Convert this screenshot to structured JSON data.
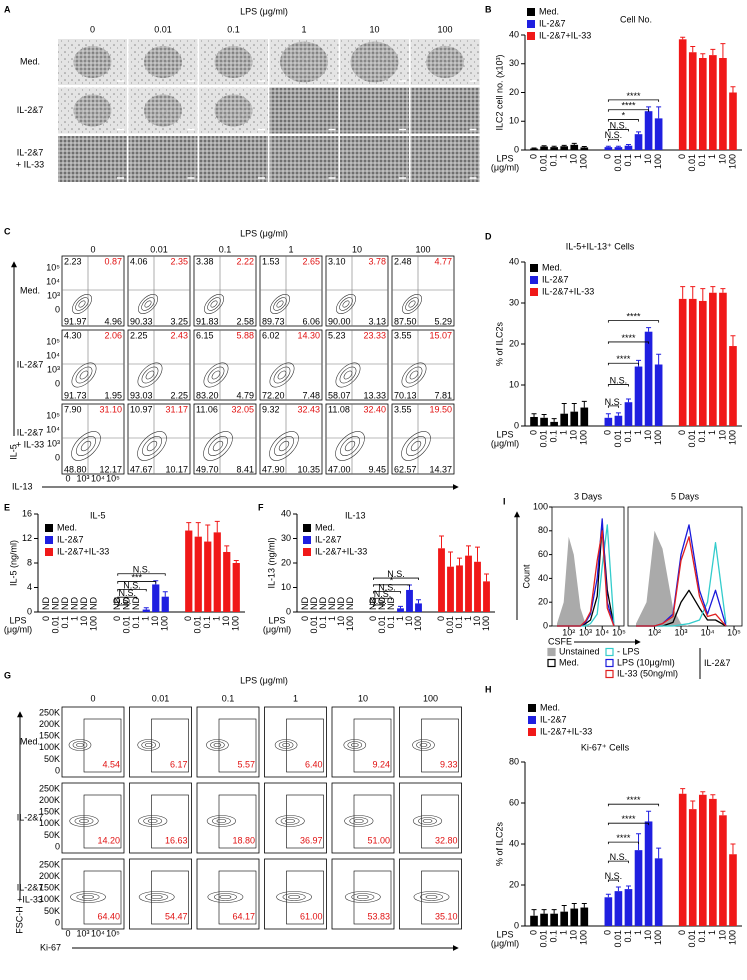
{
  "panel_a": {
    "label": "A",
    "header": "LPS (μg/ml)",
    "columns": [
      "0",
      "0.01",
      "0.1",
      "1",
      "10",
      "100"
    ],
    "rows": [
      "Med.",
      "IL-2&7",
      [
        "IL-2&7",
        "+ IL-33"
      ]
    ]
  },
  "panel_c": {
    "label": "C",
    "header": "LPS (μg/ml)",
    "columns": [
      "0",
      "0.01",
      "0.1",
      "1",
      "10",
      "100"
    ],
    "rows": [
      "Med.",
      "IL-2&7",
      [
        "IL-2&7",
        "+ IL-33"
      ]
    ],
    "y_label": "IL-5",
    "x_label": "IL-13",
    "y_ticks": [
      "10⁵",
      "10⁴",
      "10³",
      "0"
    ],
    "x_ticks": [
      "0",
      "10³",
      "10⁴",
      "10⁵"
    ],
    "quadrants": [
      [
        [
          "2.23",
          "0.87",
          "91.97",
          "4.96"
        ],
        [
          "4.06",
          "2.35",
          "90.33",
          "3.25"
        ],
        [
          "3.38",
          "2.22",
          "91.83",
          "2.58"
        ],
        [
          "1.53",
          "2.65",
          "89.73",
          "6.06"
        ],
        [
          "3.10",
          "3.78",
          "90.00",
          "3.13"
        ],
        [
          "2.48",
          "4.77",
          "87.50",
          "5.29"
        ]
      ],
      [
        [
          "4.30",
          "2.06",
          "91.73",
          "1.95"
        ],
        [
          "2.25",
          "2.43",
          "93.03",
          "2.25"
        ],
        [
          "6.15",
          "5.88",
          "83.20",
          "4.79"
        ],
        [
          "6.02",
          "14.30",
          "72.20",
          "7.48"
        ],
        [
          "5.23",
          "23.33",
          "58.07",
          "13.33"
        ],
        [
          "3.55",
          "15.07",
          "70.13",
          "7.81"
        ]
      ],
      [
        [
          "7.90",
          "31.10",
          "48.80",
          "12.17"
        ],
        [
          "10.97",
          "31.17",
          "47.67",
          "10.17"
        ],
        [
          "11.06",
          "32.05",
          "49.70",
          "8.41"
        ],
        [
          "9.32",
          "32.43",
          "47.90",
          "10.35"
        ],
        [
          "11.08",
          "32.40",
          "47.00",
          "9.45"
        ],
        [
          "3.55",
          "19.50",
          "62.57",
          "14.37"
        ]
      ]
    ]
  },
  "panel_g": {
    "label": "G",
    "header": "LPS (μg/ml)",
    "columns": [
      "0",
      "0.01",
      "0.1",
      "1",
      "10",
      "100"
    ],
    "rows": [
      "Med.",
      "IL-2&7",
      [
        "IL-2&7",
        "+IL-33"
      ]
    ],
    "y_label": "FSC-H",
    "x_label": "Ki-67",
    "y_ticks": [
      "250K",
      "200K",
      "150K",
      "100K",
      "50K",
      "0"
    ],
    "x_ticks": [
      "0",
      "10³",
      "10⁴",
      "10⁵"
    ],
    "values": [
      [
        "4.54",
        "6.17",
        "5.57",
        "6.40",
        "9.24",
        "9.33"
      ],
      [
        "14.20",
        "16.63",
        "18.80",
        "36.97",
        "51.00",
        "32.80"
      ],
      [
        "64.40",
        "54.47",
        "64.17",
        "61.00",
        "53.83",
        "35.10"
      ]
    ]
  },
  "chart_data": [
    {
      "type": "bar",
      "label": "B",
      "title": "Cell No.",
      "ylabel": "ILC2 cell no. (x10³)",
      "xlabel": [
        "LPS",
        "(μg/ml)"
      ],
      "categories": [
        "0",
        "0.01",
        "0.1",
        "1",
        "10",
        "100"
      ],
      "ylim": [
        0,
        40
      ],
      "yticks": [
        0,
        10,
        20,
        30,
        40
      ],
      "series": [
        {
          "name": "Med.",
          "color": "#000000",
          "values": [
            0.5,
            1.2,
            1,
            1.3,
            1.8,
            0.9
          ],
          "errors": [
            0.2,
            0.3,
            0.3,
            0.3,
            0.5,
            0.3
          ]
        },
        {
          "name": "IL-2&7",
          "color": "#1f1fe0",
          "values": [
            1,
            1,
            1.5,
            5.5,
            13.5,
            11
          ],
          "errors": [
            0.3,
            0.3,
            0.4,
            0.8,
            1.5,
            4
          ],
          "comparisons": [
            "N.S.",
            "N.S.",
            "*",
            "****",
            "****"
          ]
        },
        {
          "name": "IL-2&7+IL-33",
          "color": "#f01818",
          "values": [
            38.5,
            34,
            32,
            33,
            32,
            20
          ],
          "errors": [
            0.7,
            2,
            1.5,
            2,
            5,
            2
          ]
        }
      ]
    },
    {
      "type": "bar",
      "label": "D",
      "title": "IL-5+IL-13⁺ Cells",
      "ylabel": "% of ILC2s",
      "xlabel": [
        "LPS",
        "(μg/ml)"
      ],
      "categories": [
        "0",
        "0.01",
        "0.1",
        "1",
        "10",
        "100"
      ],
      "ylim": [
        0,
        40
      ],
      "yticks": [
        0,
        10,
        20,
        30,
        40
      ],
      "series": [
        {
          "name": "Med.",
          "color": "#000000",
          "values": [
            2.2,
            2,
            1,
            3,
            3.5,
            4.5
          ],
          "errors": [
            0.8,
            0.8,
            0.8,
            2.5,
            2,
            1.5
          ]
        },
        {
          "name": "IL-2&7",
          "color": "#1f1fe0",
          "values": [
            2,
            2.5,
            5.8,
            14.5,
            23,
            15
          ],
          "errors": [
            1,
            0.7,
            0.8,
            1.5,
            1,
            2.5
          ],
          "comparisons": [
            "N.S.",
            "N.S.",
            "****",
            "****",
            "****"
          ]
        },
        {
          "name": "IL-2&7+IL-33",
          "color": "#f01818",
          "values": [
            31,
            31,
            30.5,
            32.5,
            32.5,
            19.5
          ],
          "errors": [
            3,
            3,
            3,
            1.5,
            1,
            2.5
          ]
        }
      ]
    },
    {
      "type": "bar",
      "label": "E",
      "title": "IL-5",
      "ylabel": "IL-5 (ng/ml)",
      "xlabel": [
        "LPS",
        "(μg/ml)"
      ],
      "categories": [
        "0",
        "0.01",
        "0.1",
        "1",
        "10",
        "100"
      ],
      "ylim": [
        0,
        16
      ],
      "yticks": [
        0,
        4,
        8,
        12,
        16
      ],
      "series": [
        {
          "name": "Med.",
          "color": "#000000",
          "values": [
            null,
            null,
            null,
            null,
            null,
            null
          ],
          "value_labels": [
            "ND",
            "ND",
            "ND",
            "ND",
            "ND",
            "ND"
          ]
        },
        {
          "name": "IL-2&7",
          "color": "#1f1fe0",
          "values": [
            null,
            null,
            null,
            0.4,
            4.5,
            2.5
          ],
          "value_labels": [
            "ND",
            "ND",
            "ND",
            null,
            null,
            null
          ],
          "errors": [
            null,
            null,
            null,
            0.3,
            0.6,
            0.8
          ],
          "comparisons": [
            "N.S.",
            "N.S.",
            "N.S.",
            "***",
            "N.S."
          ]
        },
        {
          "name": "IL-2&7+IL-33",
          "color": "#f01818",
          "values": [
            13.3,
            12.3,
            11.5,
            13,
            9.8,
            8
          ],
          "errors": [
            1.3,
            2.3,
            2.7,
            1.8,
            1,
            0.4
          ]
        }
      ]
    },
    {
      "type": "bar",
      "label": "F",
      "title": "IL-13",
      "ylabel": "IL-13 (ng/ml)",
      "xlabel": [
        "LPS",
        "(μg/ml)"
      ],
      "categories": [
        "0",
        "0.01",
        "0.1",
        "1",
        "10",
        "100"
      ],
      "ylim": [
        0,
        40
      ],
      "yticks": [
        0,
        10,
        20,
        30,
        40
      ],
      "series": [
        {
          "name": "Med.",
          "color": "#000000",
          "values": [
            null,
            null,
            null,
            null,
            null,
            null
          ],
          "value_labels": [
            "ND",
            "ND",
            "ND",
            "ND",
            "ND",
            "ND"
          ]
        },
        {
          "name": "IL-2&7",
          "color": "#1f1fe0",
          "values": [
            null,
            null,
            null,
            1.5,
            9,
            3.5
          ],
          "value_labels": [
            "ND",
            "ND",
            "ND",
            null,
            null,
            null
          ],
          "errors": [
            null,
            null,
            null,
            0.8,
            2,
            1.5
          ],
          "comparisons": [
            "N.S.",
            "N.S.",
            "N.S.",
            "*",
            "N.S."
          ]
        },
        {
          "name": "IL-2&7+IL-33",
          "color": "#f01818",
          "values": [
            26,
            18.5,
            19,
            23,
            20.5,
            12.5
          ],
          "errors": [
            5,
            6,
            3,
            4,
            6,
            3
          ]
        }
      ]
    },
    {
      "type": "bar",
      "label": "H",
      "title": "Ki-67⁺ Cells",
      "ylabel": "% of ILC2s",
      "xlabel": [
        "LPS",
        "(μg/ml)"
      ],
      "categories": [
        "0",
        "0.01",
        "0.1",
        "1",
        "10",
        "100"
      ],
      "ylim": [
        0,
        80
      ],
      "yticks": [
        0,
        20,
        40,
        60,
        80
      ],
      "series": [
        {
          "name": "Med.",
          "color": "#000000",
          "values": [
            5,
            6,
            6,
            7,
            8.5,
            9
          ],
          "errors": [
            3,
            2,
            2,
            3,
            2.5,
            2
          ]
        },
        {
          "name": "IL-2&7",
          "color": "#1f1fe0",
          "values": [
            14,
            17,
            18,
            37,
            51,
            33
          ],
          "errors": [
            1.5,
            2,
            1.5,
            8,
            5,
            5
          ],
          "comparisons": [
            "N.S.",
            "N.S.",
            "****",
            "****",
            "****"
          ]
        },
        {
          "name": "IL-2&7+IL-33",
          "color": "#f01818",
          "values": [
            64.5,
            57,
            64,
            62,
            54,
            35
          ],
          "errors": [
            2.5,
            4,
            1.5,
            2,
            2,
            5
          ]
        }
      ]
    },
    {
      "type": "line",
      "label": "I",
      "panels": [
        "3 Days",
        "5 Days"
      ],
      "ylabel": "Count",
      "xlabel": "CSFE",
      "x": [
        20,
        50,
        100,
        200,
        500,
        1000,
        2000,
        5000,
        10000,
        20000,
        50000
      ],
      "xscale": "log",
      "xlim": [
        10,
        200000
      ],
      "xticks": [
        {
          "value": 100,
          "label": "10²"
        },
        {
          "value": 1000,
          "label": "10³"
        },
        {
          "value": 10000,
          "label": "10⁴"
        },
        {
          "value": 100000,
          "label": "10⁵"
        }
      ],
      "ylim": [
        0,
        100
      ],
      "yticks": [
        0,
        20,
        40,
        60,
        80,
        100
      ],
      "legend_group": "IL-2&7",
      "series": [
        {
          "name": "Unstained",
          "color": "#aaaaaa",
          "fill": true,
          "values": [
            [
              2,
              20,
              75,
              60,
              15,
              2,
              0,
              0,
              0,
              0,
              0
            ],
            [
              2,
              20,
              80,
              65,
              15,
              2,
              0,
              0,
              0,
              0,
              0
            ]
          ]
        },
        {
          "name": "Med.",
          "color": "#000000",
          "values": [
            [
              0,
              0,
              0,
              0,
              0,
              2,
              5,
              25,
              85,
              30,
              0
            ],
            [
              0,
              0,
              0,
              0,
              3,
              20,
              30,
              15,
              5,
              5,
              0
            ]
          ]
        },
        {
          "name": "- LPS",
          "color": "#33cccc",
          "values": [
            [
              0,
              0,
              0,
              0,
              0,
              0,
              2,
              10,
              50,
              85,
              2
            ],
            [
              0,
              0,
              0,
              0,
              0,
              1,
              2,
              5,
              20,
              70,
              2
            ]
          ]
        },
        {
          "name": "LPS (10μg/ml)",
          "color": "#1a1adb",
          "values": [
            [
              0,
              0,
              0,
              0,
              0,
              3,
              10,
              40,
              90,
              20,
              0
            ],
            [
              0,
              0,
              0,
              2,
              10,
              60,
              85,
              30,
              10,
              30,
              0
            ]
          ]
        },
        {
          "name": "IL-33 (50ng/ml)",
          "color": "#e02020",
          "values": [
            [
              0,
              0,
              0,
              0,
              0,
              4,
              12,
              55,
              80,
              15,
              0
            ],
            [
              0,
              0,
              0,
              2,
              8,
              55,
              75,
              25,
              8,
              10,
              0
            ]
          ]
        }
      ]
    }
  ]
}
